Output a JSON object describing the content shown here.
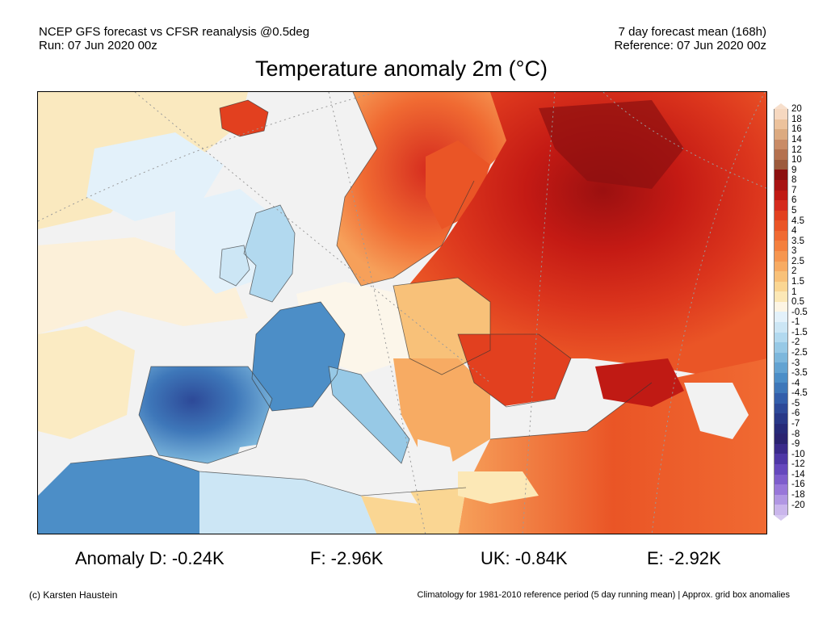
{
  "header": {
    "left_line1": "NCEP GFS forecast vs CFSR reanalysis @0.5deg",
    "left_line2": "Run: 07 Jun 2020 00z",
    "right_line1": "7 day forecast mean (168h)",
    "right_line2": "Reference: 07 Jun 2020 00z"
  },
  "title": "Temperature anomaly 2m (°C)",
  "colorbar": {
    "labels": [
      "20",
      "18",
      "16",
      "14",
      "12",
      "10",
      "9",
      "8",
      "7",
      "6",
      "5",
      "4.5",
      "4",
      "3.5",
      "3",
      "2.5",
      "2",
      "1.5",
      "1",
      "0.5",
      "-0.5",
      "-1",
      "-1.5",
      "-2",
      "-2.5",
      "-3",
      "-3.5",
      "-4",
      "-4.5",
      "-5",
      "-6",
      "-7",
      "-8",
      "-9",
      "-10",
      "-12",
      "-14",
      "-16",
      "-18",
      "-20"
    ],
    "colors": [
      "#f6d8c0",
      "#ecc29c",
      "#dcaa80",
      "#c98b66",
      "#b4714f",
      "#9c5a3c",
      "#8c1010",
      "#a81313",
      "#c01a14",
      "#d52b1e",
      "#e2401f",
      "#ea5526",
      "#f06a32",
      "#f4803e",
      "#f69650",
      "#f7ab63",
      "#f8c179",
      "#fad693",
      "#fce8b6",
      "#fdf5e4",
      "#e3f1fa",
      "#cce6f5",
      "#b2d9ef",
      "#97c9e6",
      "#7db7dc",
      "#63a3d2",
      "#4c8ec7",
      "#3e77b9",
      "#335eaa",
      "#2d4998",
      "#283887",
      "#262a78",
      "#2a2370",
      "#3a2a8a",
      "#4e37a6",
      "#6548bd",
      "#7e5dcc",
      "#9877d9",
      "#b197e3",
      "#cab6ec"
    ],
    "top_arrow_color": "#f7dfcc",
    "bottom_arrow_color": "#d6c8f0"
  },
  "stats": {
    "germany": "Anomaly D: -0.24K",
    "france": "F: -2.96K",
    "uk": "UK: -0.84K",
    "spain": "E: -2.92K"
  },
  "footer": {
    "credit": "(c) Karsten Haustein",
    "note": "Climatology for 1981-2010 reference period (5 day running mean) | Approx. grid box anomalies"
  }
}
